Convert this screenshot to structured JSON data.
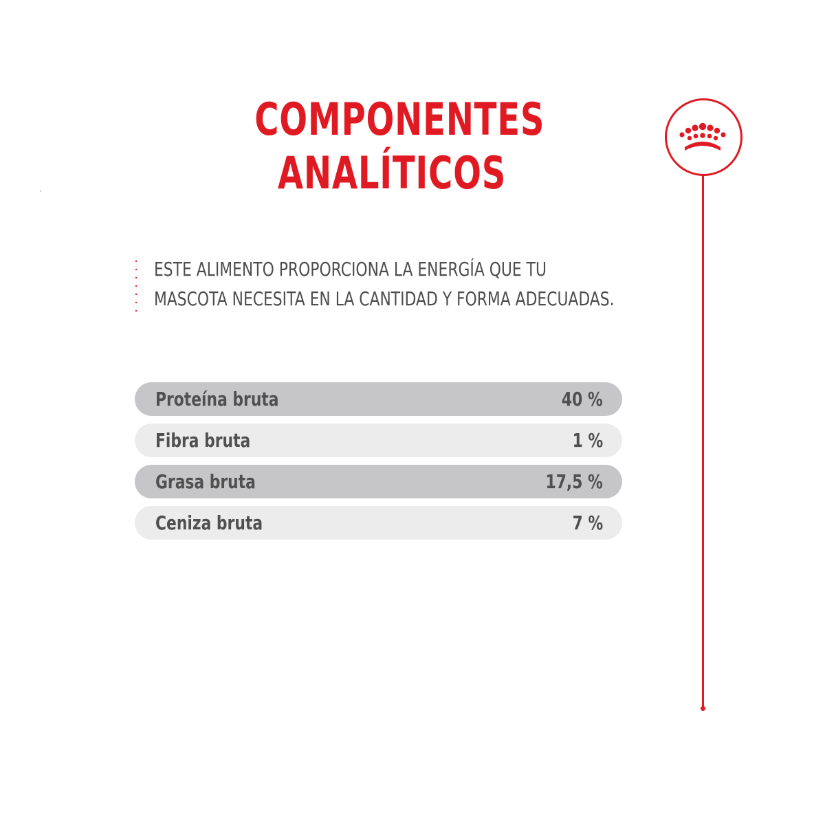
{
  "title": {
    "line1": "COMPONENTES",
    "line2": "ANALÍTICOS"
  },
  "intro": {
    "line1": "ESTE ALIMENTO PROPORCIONA LA ENERGÍA QUE TU",
    "line2": "MASCOTA NECESITA EN LA CANTIDAD Y FORMA ADECUADAS."
  },
  "components": [
    {
      "label": "Proteína bruta",
      "value": "40 %"
    },
    {
      "label": "Fibra bruta",
      "value": "1 %"
    },
    {
      "label": "Grasa bruta",
      "value": "17,5 %"
    },
    {
      "label": "Ceniza bruta",
      "value": "7 %"
    }
  ],
  "brand": {
    "icon": "crown-icon"
  },
  "colors": {
    "accent": "#e01a22",
    "text": "#4d4d4d",
    "row_dark": "#c6c6c8",
    "row_light": "#ececed",
    "background": "#ffffff"
  }
}
